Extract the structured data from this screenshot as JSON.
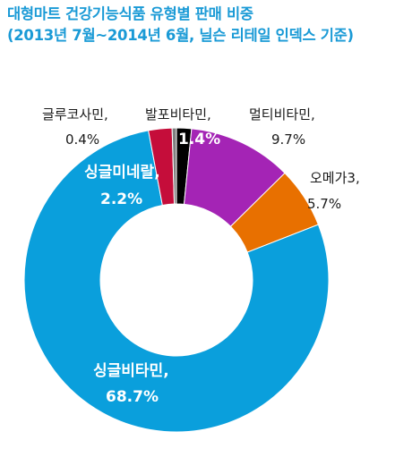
{
  "title_line1": "대형마트 건강기능식품 유형별 판매 비중",
  "title_line2": "(2013년 7월~2014년 6월, 닐슨 리테일 인덱스 기준)",
  "chart_data": {
    "type": "pie",
    "donut": true,
    "title": "대형마트 건강기능식품 유형별 판매 비중 (2013년 7월~2014년 6월, 닐슨 리테일 인덱스 기준)",
    "unit": "%",
    "slices": [
      {
        "name": "발포비타민",
        "value": 1.4,
        "label": "1.4%",
        "color": "#000000"
      },
      {
        "name": "멀티비타민",
        "value": 9.7,
        "label": "9.7%",
        "color": "#a424b5"
      },
      {
        "name": "오메가3",
        "value": 5.7,
        "label": "5.7%",
        "color": "#e87000"
      },
      {
        "name": "싱글비타민",
        "value": 68.7,
        "label": "68.7%",
        "color": "#0a9fdc"
      },
      {
        "name": "싱글미네랄",
        "value": 2.2,
        "label": "2.2%",
        "color": "#c50d3a"
      },
      {
        "name": "글루코사민",
        "value": 0.4,
        "label": "0.4%",
        "color": "#7f7f7f"
      }
    ]
  }
}
